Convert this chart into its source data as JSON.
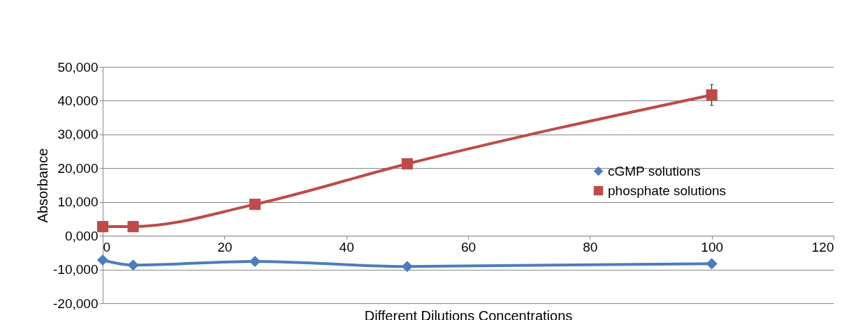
{
  "chart_data": {
    "type": "line",
    "xlabel": "Different Dilutions Concentrations",
    "ylabel": "Absorbance",
    "xlim": [
      0,
      120
    ],
    "xticks": [
      0,
      20,
      40,
      60,
      80,
      100,
      120
    ],
    "ylim": [
      -20000,
      50000
    ],
    "yticks": [
      {
        "value": -20000,
        "label": "-20,000"
      },
      {
        "value": -10000,
        "label": "-10,000"
      },
      {
        "value": 0,
        "label": "0,000"
      },
      {
        "value": 10000,
        "label": "10,000"
      },
      {
        "value": 20000,
        "label": "20,000"
      },
      {
        "value": 30000,
        "label": "30,000"
      },
      {
        "value": 40000,
        "label": "40,000"
      },
      {
        "value": 50000,
        "label": "50,000"
      }
    ],
    "grid": "y",
    "legend": "right",
    "line_style": "solid",
    "series": [
      {
        "name": "cGMP solutions",
        "color": "#4a7ebb",
        "marker": "diamond",
        "x": [
          0,
          5,
          25,
          50,
          100
        ],
        "values": [
          -7200,
          -8700,
          -7600,
          -9100,
          -8300
        ]
      },
      {
        "name": "phosphate  solutions",
        "color": "#be4b48",
        "marker": "square",
        "x": [
          0,
          5,
          25,
          50,
          100
        ],
        "values": [
          2700,
          2700,
          9300,
          21300,
          41700
        ],
        "errors": [
          null,
          null,
          null,
          null,
          3100
        ]
      }
    ]
  }
}
